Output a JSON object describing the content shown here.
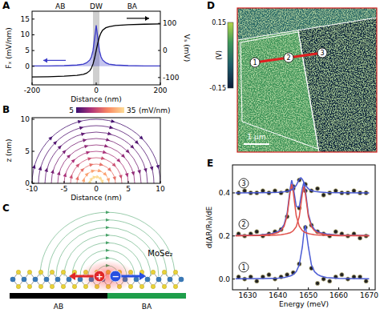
{
  "panel_labels": [
    "A",
    "B",
    "C",
    "D",
    "E"
  ],
  "chart_data": [
    {
      "type": "line",
      "top_labels": [
        "AB",
        "DW",
        "BA"
      ],
      "xlabel": "Distance (nm)",
      "ylabel": "Fₓ (mV/nm)",
      "y2label": "Vₛ (mV)",
      "x": [
        -200,
        -150,
        -100,
        -60,
        -40,
        -30,
        -20,
        -15,
        -10,
        -5,
        0,
        5,
        10,
        15,
        20,
        30,
        40,
        60,
        100,
        150,
        200
      ],
      "xlim": [
        -200,
        200
      ],
      "xticks": [
        -200,
        0,
        200
      ],
      "ylim": [
        -5.9,
        17.5
      ],
      "yticks": [
        0,
        5,
        10,
        15
      ],
      "y2lim": [
        -127,
        145
      ],
      "y2ticks": [
        -100,
        0,
        100
      ],
      "shaded_region": [
        -10,
        10
      ],
      "series": [
        {
          "type": "area",
          "color": "#3b3bc8",
          "values": [
            0.1,
            0.1,
            0.2,
            0.4,
            0.7,
            1.1,
            2.0,
            3.0,
            5.0,
            9.0,
            13.0,
            9.0,
            5.0,
            3.0,
            2.0,
            1.1,
            0.7,
            0.4,
            0.2,
            0.1,
            0.1
          ]
        },
        {
          "type": "line",
          "color": "#000000",
          "axis": "y2",
          "values": [
            -98,
            -97,
            -95,
            -92,
            -88,
            -84,
            -75,
            -65,
            -50,
            -28,
            0,
            28,
            50,
            65,
            75,
            84,
            88,
            92,
            95,
            97,
            98
          ]
        }
      ]
    },
    {
      "type": "vector_field",
      "xlabel": "Distance (nm)",
      "ylabel": "z (nm)",
      "xlim": [
        -10,
        10
      ],
      "xticks": [
        -10,
        -5,
        0,
        5,
        10
      ],
      "ylim": [
        0,
        10.25
      ],
      "yticks": [
        0,
        5,
        10
      ],
      "field_lines": {
        "radius": [
          1,
          2,
          3,
          4,
          5,
          6,
          7,
          8,
          9,
          10
        ],
        "magnitude": [
          35,
          28,
          22,
          18,
          14,
          12,
          10,
          8,
          7,
          6
        ]
      },
      "colorbar": {
        "range": [
          5,
          35
        ],
        "ticks": [
          5,
          35
        ],
        "label": "(mV/nm)"
      }
    },
    {
      "type": "scatter",
      "xlabel": "Energy (meV)",
      "ylabel": "d(ΔR/R₀)/dE",
      "xlim": [
        1625,
        1672
      ],
      "xticks": [
        1630,
        1640,
        1650,
        1660,
        1670
      ],
      "ylim": [
        -0.05,
        0.53
      ],
      "yticks": [
        {
          "value": 0,
          "label": "0.0"
        },
        {
          "value": 0.2,
          "label": "0.2"
        },
        {
          "value": 0.4,
          "label": "0.4"
        }
      ],
      "spectrum_labels": [
        "1",
        "2",
        "3"
      ],
      "series": [
        {
          "type": "scatter",
          "color": "#222222",
          "x": [
            1627,
            1629,
            1631,
            1633,
            1635,
            1637,
            1639,
            1641,
            1643,
            1645,
            1647,
            1649,
            1651,
            1653,
            1655,
            1657,
            1659,
            1661,
            1663,
            1665,
            1667,
            1669
          ],
          "values": [
            0.01,
            0.0,
            0.01,
            -0.01,
            0.01,
            0.02,
            0.0,
            0.01,
            0.02,
            0.03,
            0.07,
            0.24,
            0.05,
            -0.02,
            0.0,
            -0.01,
            0.01,
            0.02,
            0.0,
            0.01,
            0.01,
            -0.01
          ]
        },
        {
          "type": "scatter",
          "color": "#222222",
          "x": [
            1627,
            1629,
            1631,
            1633,
            1635,
            1637,
            1639,
            1641,
            1643,
            1645,
            1647,
            1649,
            1651,
            1653,
            1655,
            1657,
            1659,
            1661,
            1663,
            1665,
            1667,
            1669
          ],
          "values": [
            0.21,
            0.2,
            0.21,
            0.22,
            0.2,
            0.21,
            0.22,
            0.23,
            0.29,
            0.43,
            0.33,
            0.41,
            0.25,
            0.22,
            0.21,
            0.2,
            0.22,
            0.21,
            0.2,
            0.21,
            0.19,
            0.2
          ]
        },
        {
          "type": "scatter",
          "color": "#222222",
          "x": [
            1627,
            1629,
            1631,
            1633,
            1635,
            1637,
            1639,
            1641,
            1643,
            1645,
            1647,
            1649,
            1651,
            1653,
            1655,
            1657,
            1659,
            1661,
            1663,
            1665,
            1667,
            1669
          ],
          "values": [
            0.4,
            0.41,
            0.4,
            0.4,
            0.41,
            0.4,
            0.41,
            0.4,
            0.41,
            0.42,
            0.46,
            0.44,
            0.41,
            0.42,
            0.39,
            0.4,
            0.41,
            0.4,
            0.4,
            0.41,
            0.4,
            0.4
          ]
        },
        {
          "type": "line",
          "color": "#4a5bd4",
          "x": [
            1626,
            1634,
            1638,
            1640,
            1641,
            1642,
            1643,
            1644,
            1644.5,
            1645,
            1646,
            1647,
            1648,
            1648.5,
            1649,
            1650,
            1651,
            1652,
            1653,
            1654,
            1656,
            1660,
            1670
          ],
          "values": [
            0.001,
            0.002,
            0.003,
            0.004,
            0.006,
            0.007,
            0.01,
            0.014,
            0.017,
            0.021,
            0.034,
            0.066,
            0.148,
            0.213,
            0.25,
            0.148,
            0.066,
            0.034,
            0.021,
            0.014,
            0.007,
            0.003,
            0.001
          ]
        },
        {
          "type": "line",
          "color": "#4a5bd4",
          "x": [
            1626,
            1634,
            1638,
            1640,
            1641,
            1642,
            1643,
            1644,
            1644.5,
            1645,
            1646,
            1647,
            1648,
            1648.5,
            1649,
            1650,
            1651,
            1652,
            1653,
            1654,
            1656,
            1660,
            1670
          ],
          "values": [
            0.202,
            0.205,
            0.211,
            0.221,
            0.231,
            0.253,
            0.305,
            0.42,
            0.459,
            0.429,
            0.337,
            0.335,
            0.421,
            0.45,
            0.412,
            0.301,
            0.251,
            0.23,
            0.22,
            0.215,
            0.209,
            0.204,
            0.202
          ]
        },
        {
          "type": "line",
          "color": "#e0504a",
          "x": [
            1626,
            1634,
            1638,
            1640,
            1641,
            1642,
            1643,
            1644,
            1644.5,
            1645,
            1646,
            1647,
            1648,
            1648.5,
            1649,
            1650,
            1651,
            1652,
            1653,
            1654,
            1656,
            1660,
            1670
          ],
          "values": [
            0.201,
            0.203,
            0.208,
            0.216,
            0.225,
            0.245,
            0.294,
            0.405,
            0.44,
            0.405,
            0.294,
            0.245,
            0.225,
            0.22,
            0.216,
            0.211,
            0.208,
            0.206,
            0.205,
            0.204,
            0.203,
            0.201,
            0.201
          ]
        },
        {
          "type": "line",
          "color": "#e0504a",
          "x": [
            1626,
            1634,
            1638,
            1640,
            1641,
            1642,
            1643,
            1644,
            1644.5,
            1645,
            1646,
            1647,
            1648,
            1648.5,
            1649,
            1650,
            1651,
            1652,
            1653,
            1654,
            1656,
            1660,
            1670
          ],
          "values": [
            0.201,
            0.202,
            0.203,
            0.205,
            0.206,
            0.208,
            0.211,
            0.215,
            0.219,
            0.224,
            0.243,
            0.29,
            0.396,
            0.43,
            0.396,
            0.29,
            0.243,
            0.224,
            0.215,
            0.211,
            0.206,
            0.203,
            0.201
          ]
        },
        {
          "type": "line",
          "color": "#4a5bd4",
          "x": [
            1626,
            1634,
            1638,
            1640,
            1641,
            1642,
            1643,
            1644,
            1645,
            1646,
            1647,
            1647.5,
            1648,
            1649,
            1650,
            1651,
            1652,
            1653,
            1654,
            1656,
            1660,
            1670
          ],
          "values": [
            0.4,
            0.401,
            0.402,
            0.403,
            0.404,
            0.405,
            0.407,
            0.411,
            0.419,
            0.435,
            0.463,
            0.47,
            0.463,
            0.435,
            0.419,
            0.411,
            0.407,
            0.405,
            0.404,
            0.402,
            0.401,
            0.4
          ]
        }
      ]
    }
  ],
  "diagram": {
    "material": "MoSe₂",
    "stacking": [
      "AB",
      "BA"
    ],
    "charges": [
      "+",
      "−"
    ]
  },
  "image_map": {
    "colorbar": {
      "range": [
        -0.15,
        0.15
      ],
      "ticks": [
        -0.15,
        0.15
      ],
      "label": "(V)"
    },
    "scale_bar": "1 μm",
    "line_points": [
      "1",
      "2",
      "3"
    ]
  }
}
